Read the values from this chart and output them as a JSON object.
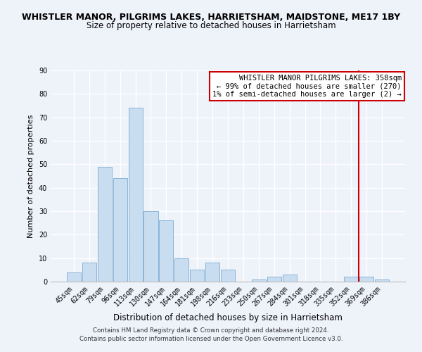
{
  "title": "WHISTLER MANOR, PILGRIMS LAKES, HARRIETSHAM, MAIDSTONE, ME17 1BY",
  "subtitle": "Size of property relative to detached houses in Harrietsham",
  "xlabel": "Distribution of detached houses by size in Harrietsham",
  "ylabel": "Number of detached properties",
  "bar_labels": [
    "45sqm",
    "62sqm",
    "79sqm",
    "96sqm",
    "113sqm",
    "130sqm",
    "147sqm",
    "164sqm",
    "181sqm",
    "198sqm",
    "216sqm",
    "233sqm",
    "250sqm",
    "267sqm",
    "284sqm",
    "301sqm",
    "318sqm",
    "335sqm",
    "352sqm",
    "369sqm",
    "386sqm"
  ],
  "bar_values": [
    4,
    8,
    49,
    44,
    74,
    30,
    26,
    10,
    5,
    8,
    5,
    0,
    1,
    2,
    3,
    0,
    0,
    0,
    2,
    2,
    1
  ],
  "bar_color": "#c9ddf0",
  "bar_edge_color": "#8ab4d8",
  "vline_color": "#cc0000",
  "vline_pos": 18.47,
  "ylim": [
    0,
    90
  ],
  "yticks": [
    0,
    10,
    20,
    30,
    40,
    50,
    60,
    70,
    80,
    90
  ],
  "legend_title": "WHISTLER MANOR PILGRIMS LAKES: 358sqm",
  "legend_line1": "← 99% of detached houses are smaller (270)",
  "legend_line2": "1% of semi-detached houses are larger (2) →",
  "footer_line1": "Contains HM Land Registry data © Crown copyright and database right 2024.",
  "footer_line2": "Contains public sector information licensed under the Open Government Licence v3.0.",
  "bg_color": "#eef2f9",
  "grid_color": "#ffffff",
  "title_fontsize": 9.0,
  "subtitle_fontsize": 8.5,
  "xlabel_fontsize": 8.5,
  "ylabel_fontsize": 8.0,
  "tick_fontsize": 7.0,
  "legend_fontsize": 7.5,
  "footer_fontsize": 6.2
}
